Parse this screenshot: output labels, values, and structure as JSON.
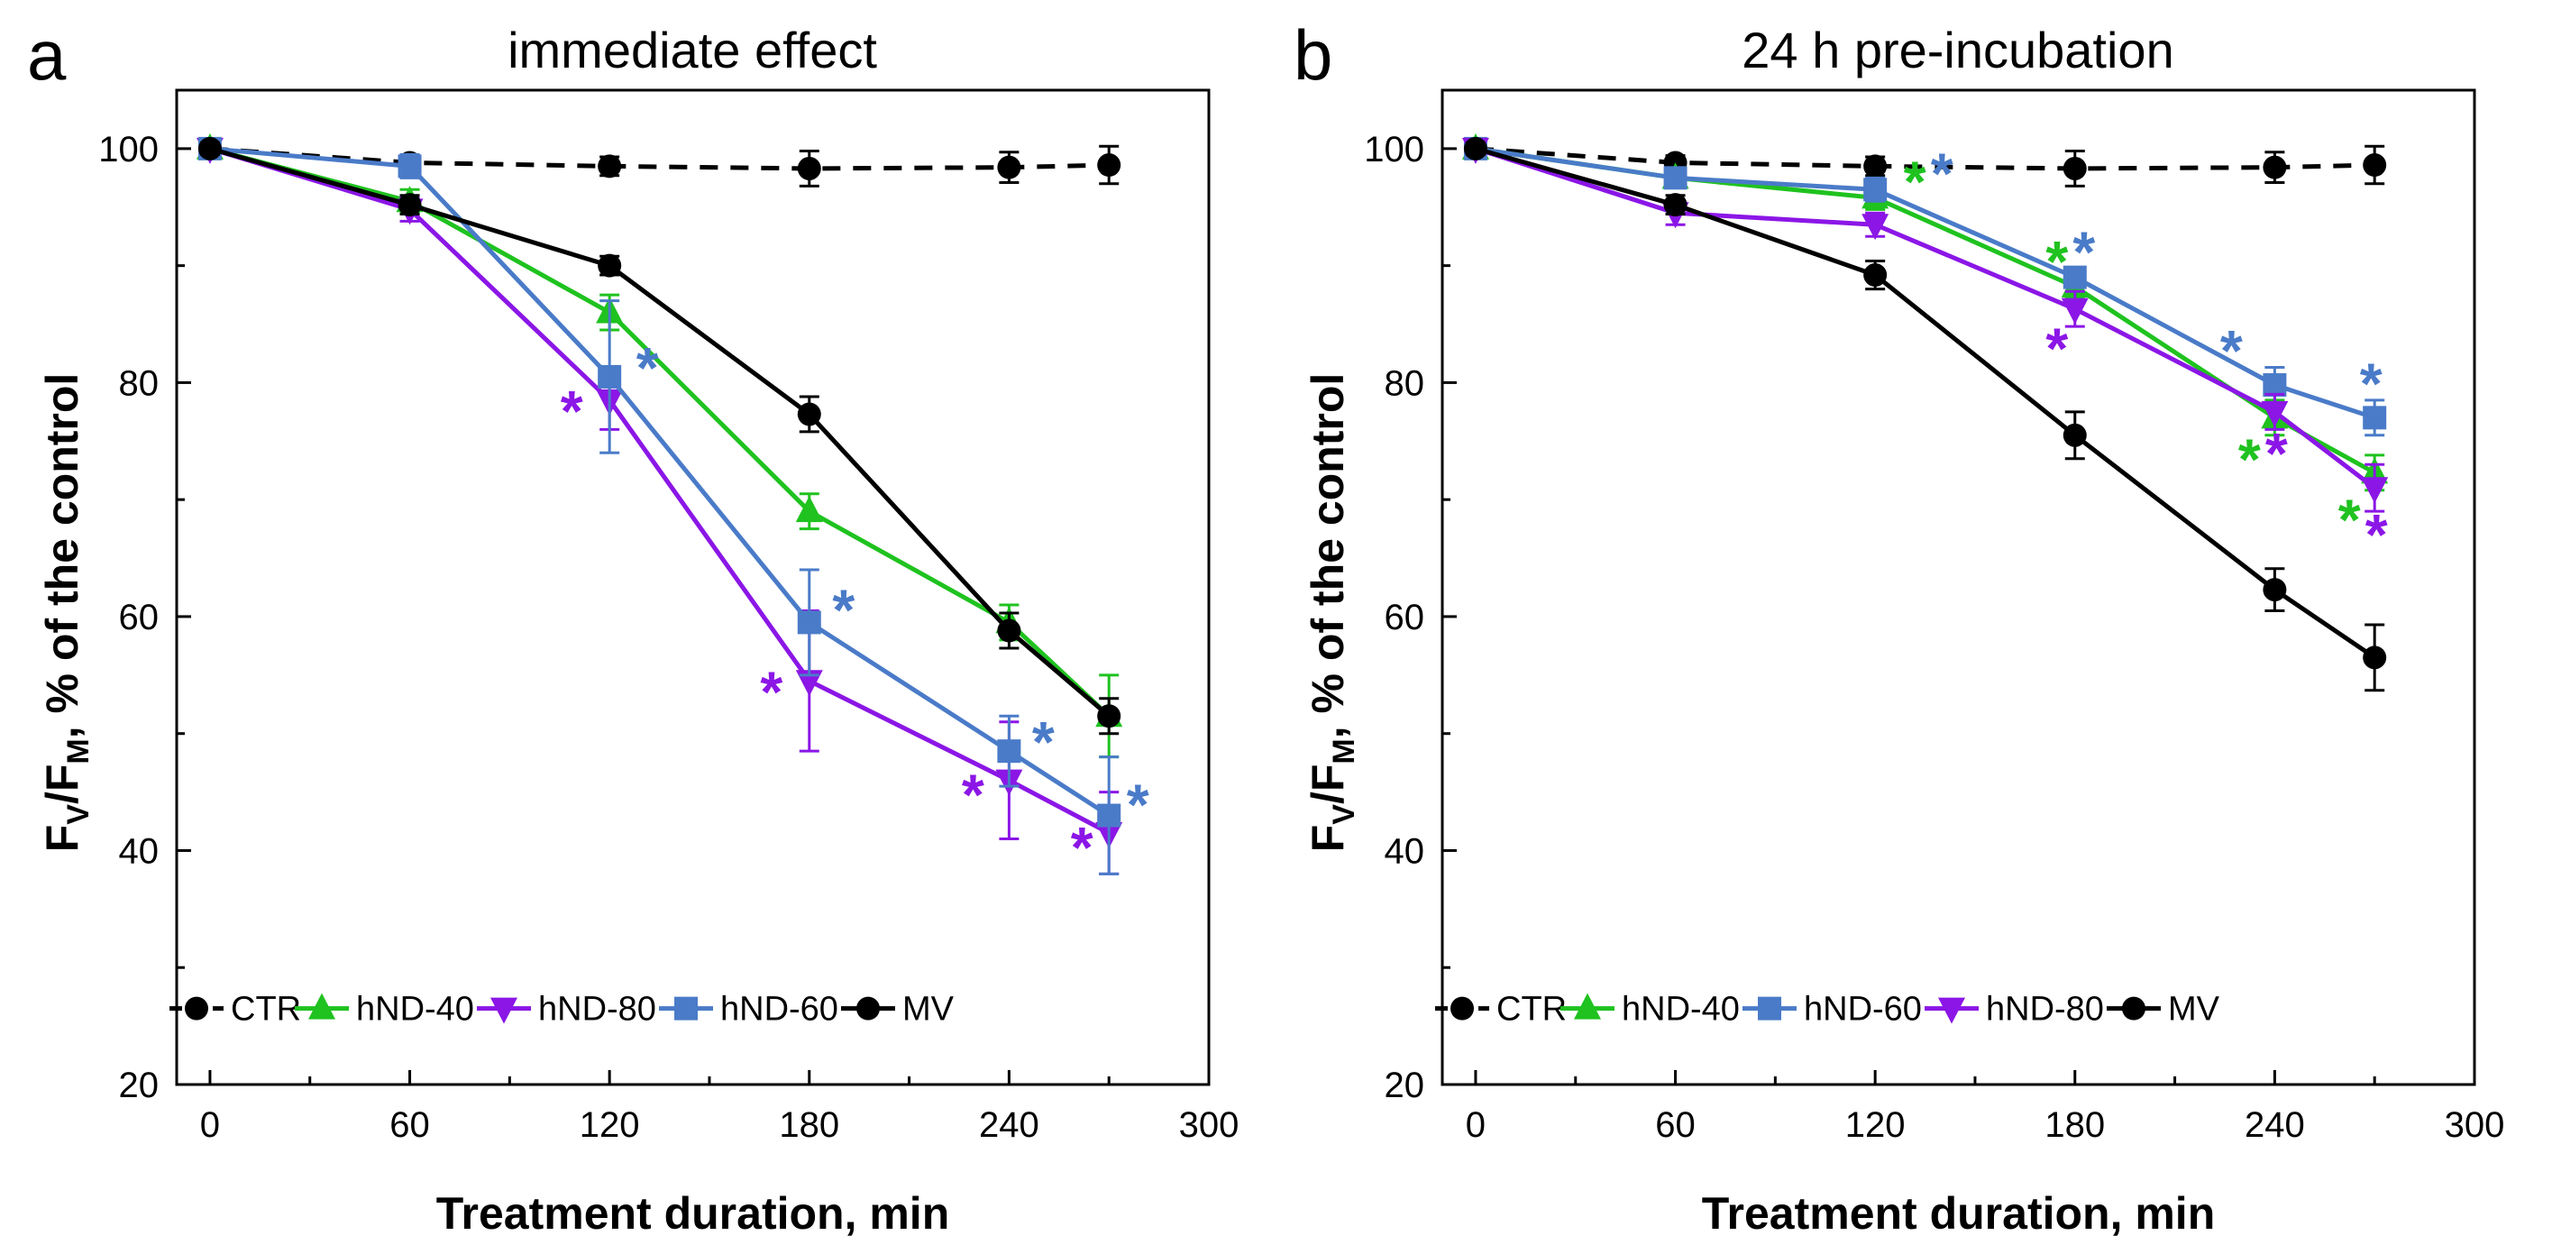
{
  "colors": {
    "CTR": "#000000",
    "hND-40": "#1fc21f",
    "hND-80": "#8b16e6",
    "hND-60": "#4a7bc8",
    "MV": "#000000"
  },
  "chart_data": [
    {
      "type": "line",
      "panel_letter": "a",
      "title": "immediate effect",
      "xlabel": "Treatment duration, min",
      "ylabel": {
        "F": "F",
        "sub1": "V",
        "slash": "/F",
        "sub2": "M",
        "rest": ", % of the control"
      },
      "xlim": [
        -10,
        300
      ],
      "ylim": [
        20,
        105
      ],
      "xticks": [
        0,
        60,
        120,
        180,
        240,
        300
      ],
      "yticks": [
        20,
        40,
        60,
        80,
        100
      ],
      "legend_order": [
        "CTR",
        "hND-40",
        "hND-80",
        "hND-60",
        "MV"
      ],
      "series": [
        {
          "name": "CTR",
          "marker": "circle",
          "dashed": true,
          "x": [
            0,
            60,
            120,
            180,
            240,
            270
          ],
          "values": [
            100,
            98.8,
            98.5,
            98.3,
            98.4,
            98.6
          ],
          "err": [
            0.5,
            0.6,
            0.8,
            1.5,
            1.3,
            1.6
          ]
        },
        {
          "name": "hND-40",
          "marker": "triangle-up",
          "x": [
            0,
            60,
            120,
            180,
            240,
            270
          ],
          "values": [
            100,
            95.5,
            86,
            69,
            59.5,
            51.5
          ],
          "err": [
            0.5,
            1.0,
            1.5,
            1.5,
            1.5,
            3.5
          ]
        },
        {
          "name": "hND-80",
          "marker": "triangle-down",
          "x": [
            0,
            60,
            120,
            180,
            240,
            270
          ],
          "values": [
            100,
            94.8,
            78.5,
            54.5,
            46,
            41.5
          ],
          "err": [
            0.5,
            1.0,
            2.5,
            6.0,
            5.0,
            3.5
          ]
        },
        {
          "name": "hND-60",
          "marker": "square",
          "x": [
            0,
            60,
            120,
            180,
            240,
            270
          ],
          "values": [
            100,
            98.5,
            80.5,
            59.5,
            48.5,
            43
          ],
          "err": [
            0.5,
            1.0,
            6.5,
            4.5,
            3.0,
            5.0
          ]
        },
        {
          "name": "MV",
          "marker": "circle",
          "x": [
            0,
            60,
            120,
            180,
            240,
            270
          ],
          "values": [
            100,
            95.2,
            90,
            77.3,
            58.8,
            51.5
          ],
          "err": [
            0.5,
            0.8,
            0.8,
            1.5,
            1.5,
            1.5
          ]
        }
      ],
      "significance_markers": [
        {
          "series": "hND-60",
          "x": 120,
          "y": 80.5,
          "label": "*"
        },
        {
          "series": "hND-80",
          "x": 120,
          "y": 78.5,
          "label": "*"
        },
        {
          "series": "hND-60",
          "x": 180,
          "y": 59.5,
          "label": "*"
        },
        {
          "series": "hND-80",
          "x": 180,
          "y": 54.5,
          "label": "*"
        },
        {
          "series": "hND-60",
          "x": 240,
          "y": 48.5,
          "label": "*"
        },
        {
          "series": "hND-80",
          "x": 240,
          "y": 46,
          "label": "*"
        },
        {
          "series": "hND-60",
          "x": 270,
          "y": 43,
          "label": "*"
        },
        {
          "series": "hND-80",
          "x": 270,
          "y": 41.5,
          "label": "*"
        }
      ]
    },
    {
      "type": "line",
      "panel_letter": "b",
      "title": "24 h pre-incubation",
      "xlabel": "Treatment duration, min",
      "ylabel": {
        "F": "F",
        "sub1": "V",
        "slash": "/F",
        "sub2": "M",
        "rest": ", % of the control"
      },
      "xlim": [
        -10,
        300
      ],
      "ylim": [
        20,
        105
      ],
      "xticks": [
        0,
        60,
        120,
        180,
        240,
        300
      ],
      "yticks": [
        20,
        40,
        60,
        80,
        100
      ],
      "legend_order": [
        "CTR",
        "hND-40",
        "hND-60",
        "hND-80",
        "MV"
      ],
      "series": [
        {
          "name": "CTR",
          "marker": "circle",
          "dashed": true,
          "x": [
            0,
            60,
            120,
            180,
            240,
            270
          ],
          "values": [
            100,
            98.8,
            98.5,
            98.3,
            98.4,
            98.6
          ],
          "err": [
            0.5,
            0.6,
            0.8,
            1.5,
            1.3,
            1.6
          ]
        },
        {
          "name": "hND-40",
          "marker": "triangle-up",
          "x": [
            0,
            60,
            120,
            180,
            240,
            270
          ],
          "values": [
            100,
            97.5,
            95.8,
            88.2,
            77,
            72.3
          ],
          "err": [
            0.5,
            0.8,
            1.0,
            1.0,
            1.5,
            1.5
          ]
        },
        {
          "name": "hND-60",
          "marker": "square",
          "x": [
            0,
            60,
            120,
            180,
            240,
            270
          ],
          "values": [
            100,
            97.5,
            96.5,
            89,
            79.8,
            77
          ],
          "err": [
            0.5,
            0.8,
            1.0,
            0.8,
            1.5,
            1.5
          ]
        },
        {
          "name": "hND-80",
          "marker": "triangle-down",
          "x": [
            0,
            60,
            120,
            180,
            240,
            270
          ],
          "values": [
            100,
            94.5,
            93.5,
            86.3,
            77.5,
            71
          ],
          "err": [
            0.5,
            1.0,
            1.0,
            1.5,
            1.5,
            2.0
          ]
        },
        {
          "name": "MV",
          "marker": "circle",
          "x": [
            0,
            60,
            120,
            180,
            240,
            270
          ],
          "values": [
            100,
            95.2,
            89.2,
            75.5,
            62.3,
            56.5
          ],
          "err": [
            0.5,
            0.8,
            1.2,
            2.0,
            1.8,
            2.8
          ]
        }
      ],
      "significance_markers": [
        {
          "series": "hND-40",
          "x": 120,
          "y": 95.8,
          "label": "*"
        },
        {
          "series": "hND-60",
          "x": 120,
          "y": 96.5,
          "label": "*"
        },
        {
          "series": "hND-40",
          "x": 180,
          "y": 88.2,
          "label": "*"
        },
        {
          "series": "hND-60",
          "x": 180,
          "y": 89,
          "label": "*"
        },
        {
          "series": "hND-80",
          "x": 180,
          "y": 86.3,
          "label": "*"
        },
        {
          "series": "hND-60",
          "x": 240,
          "y": 79.8,
          "label": "*"
        },
        {
          "series": "hND-40",
          "x": 240,
          "y": 77,
          "label": "*"
        },
        {
          "series": "hND-80",
          "x": 240,
          "y": 77.5,
          "label": "*"
        },
        {
          "series": "hND-60",
          "x": 270,
          "y": 77,
          "label": "*"
        },
        {
          "series": "hND-40",
          "x": 270,
          "y": 72.3,
          "label": "*"
        },
        {
          "series": "hND-80",
          "x": 270,
          "y": 71,
          "label": "*"
        }
      ]
    }
  ]
}
